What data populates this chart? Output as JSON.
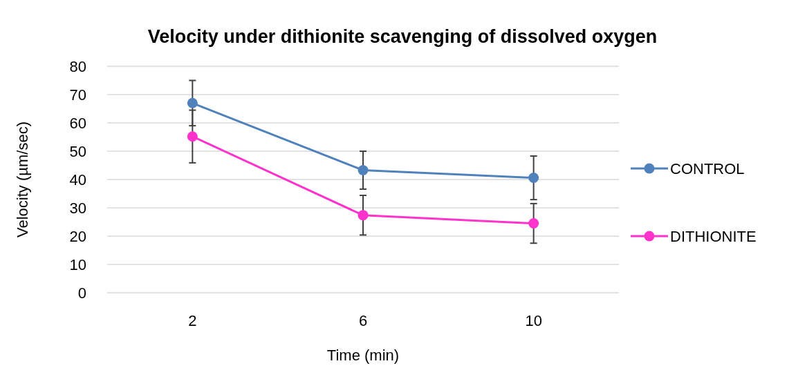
{
  "chart_data": {
    "type": "line",
    "title": "Velocity under dithionite scavenging of dissolved oxygen",
    "xlabel": "Time (min)",
    "ylabel": "Velocity (µm/sec)",
    "categories": [
      "2",
      "6",
      "10"
    ],
    "series": [
      {
        "name": "CONTROL",
        "color": "#4f81bd",
        "values": [
          67,
          43.3,
          40.6
        ],
        "errors": [
          8,
          6.7,
          7.7
        ]
      },
      {
        "name": "DITHIONITE",
        "color": "#ff33cc",
        "values": [
          55.2,
          27.4,
          24.5
        ],
        "errors": [
          9.3,
          7,
          7
        ]
      }
    ],
    "ylim": [
      0,
      80
    ],
    "yticks": [
      0,
      10,
      20,
      30,
      40,
      50,
      60,
      70,
      80
    ],
    "grid": "y",
    "legend": "right",
    "marker": "circle",
    "line_style": "solid"
  }
}
